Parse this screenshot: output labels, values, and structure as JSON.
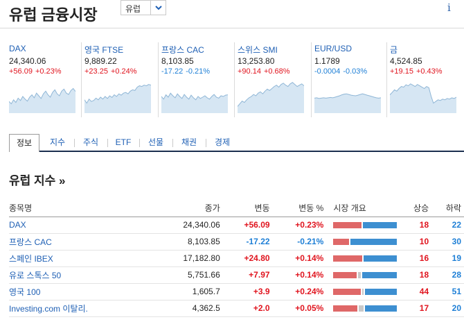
{
  "header": {
    "title": "유럽 금융시장",
    "region_selected": "유럽",
    "info_icon": "info-icon"
  },
  "cards": [
    {
      "name": "DAX",
      "price": "24,340.06",
      "change": "+56.09",
      "pct": "+0.23%",
      "dir": "pos",
      "spark": [
        0.35,
        0.28,
        0.4,
        0.32,
        0.45,
        0.38,
        0.5,
        0.42,
        0.36,
        0.48,
        0.55,
        0.46,
        0.6,
        0.52,
        0.44,
        0.58,
        0.66,
        0.55,
        0.48,
        0.62,
        0.7,
        0.58,
        0.52,
        0.66,
        0.72,
        0.6,
        0.56,
        0.68,
        0.74,
        0.65
      ]
    },
    {
      "name": "영국 FTSE",
      "price": "9,889.22",
      "change": "+23.25",
      "pct": "+0.24%",
      "dir": "pos",
      "spark": [
        0.4,
        0.3,
        0.42,
        0.35,
        0.38,
        0.45,
        0.4,
        0.48,
        0.42,
        0.5,
        0.44,
        0.52,
        0.47,
        0.55,
        0.5,
        0.58,
        0.54,
        0.6,
        0.62,
        0.58,
        0.66,
        0.7,
        0.68,
        0.78,
        0.82,
        0.8,
        0.84,
        0.82,
        0.86,
        0.84
      ]
    },
    {
      "name": "프랑스 CAC",
      "price": "8,103.85",
      "change": "-17.22",
      "pct": "-0.21%",
      "dir": "neg",
      "spark": [
        0.5,
        0.42,
        0.55,
        0.48,
        0.6,
        0.52,
        0.46,
        0.58,
        0.5,
        0.44,
        0.56,
        0.48,
        0.42,
        0.54,
        0.46,
        0.4,
        0.5,
        0.44,
        0.48,
        0.52,
        0.46,
        0.42,
        0.5,
        0.56,
        0.48,
        0.45,
        0.52,
        0.5,
        0.54,
        0.55
      ]
    },
    {
      "name": "스위스 SMI",
      "price": "13,253.80",
      "change": "+90.14",
      "pct": "+0.68%",
      "dir": "pos",
      "spark": [
        0.2,
        0.28,
        0.36,
        0.32,
        0.4,
        0.46,
        0.5,
        0.56,
        0.52,
        0.6,
        0.64,
        0.58,
        0.66,
        0.72,
        0.68,
        0.74,
        0.8,
        0.84,
        0.78,
        0.86,
        0.9,
        0.84,
        0.8,
        0.88,
        0.92,
        0.86,
        0.8,
        0.84,
        0.88,
        0.82
      ]
    },
    {
      "name": "EUR/USD",
      "price": "1.1789",
      "change": "-0.0004",
      "pct": "-0.03%",
      "dir": "neg",
      "spark": [
        0.45,
        0.46,
        0.44,
        0.45,
        0.46,
        0.45,
        0.46,
        0.47,
        0.46,
        0.48,
        0.5,
        0.52,
        0.55,
        0.57,
        0.58,
        0.56,
        0.54,
        0.53,
        0.52,
        0.54,
        0.56,
        0.58,
        0.56,
        0.54,
        0.52,
        0.5,
        0.48,
        0.46,
        0.45,
        0.46
      ]
    },
    {
      "name": "금",
      "price": "4,524.85",
      "change": "+19.15",
      "pct": "+0.43%",
      "dir": "pos",
      "spark": [
        0.55,
        0.62,
        0.7,
        0.66,
        0.74,
        0.8,
        0.78,
        0.85,
        0.82,
        0.88,
        0.84,
        0.8,
        0.86,
        0.82,
        0.78,
        0.74,
        0.8,
        0.76,
        0.5,
        0.3,
        0.35,
        0.4,
        0.38,
        0.42,
        0.4,
        0.44,
        0.42,
        0.46,
        0.44,
        0.48
      ]
    }
  ],
  "tabs": [
    "정보",
    "지수",
    "주식",
    "ETF",
    "선물",
    "채권",
    "경제"
  ],
  "section": {
    "title": "유럽 지수 »"
  },
  "table": {
    "headers": [
      "종목명",
      "종가",
      "변동",
      "변동 %",
      "시장 개요",
      "상승",
      "하락"
    ],
    "rows": [
      {
        "name": "DAX",
        "close": "24,340.06",
        "change": "+56.09",
        "pct": "+0.23%",
        "dir": "pos",
        "up": "18",
        "down": "22",
        "up_ratio": 0.45,
        "flat_ratio": 0.0
      },
      {
        "name": "프랑스 CAC",
        "close": "8,103.85",
        "change": "-17.22",
        "pct": "-0.21%",
        "dir": "neg",
        "up": "10",
        "down": "30",
        "up_ratio": 0.25,
        "flat_ratio": 0.0
      },
      {
        "name": "스페인 IBEX",
        "close": "17,182.80",
        "change": "+24.80",
        "pct": "+0.14%",
        "dir": "pos",
        "up": "16",
        "down": "19",
        "up_ratio": 0.46,
        "flat_ratio": 0.0
      },
      {
        "name": "유로 스톡스 50",
        "close": "5,751.66",
        "change": "+7.97",
        "pct": "+0.14%",
        "dir": "pos",
        "up": "18",
        "down": "28",
        "up_ratio": 0.37,
        "flat_ratio": 0.06
      },
      {
        "name": "영국 100",
        "close": "1,605.7",
        "change": "+3.9",
        "pct": "+0.24%",
        "dir": "pos",
        "up": "44",
        "down": "51",
        "up_ratio": 0.44,
        "flat_ratio": 0.04
      },
      {
        "name": "Investing.com 이탈리.",
        "close": "4,362.5",
        "change": "+2.0",
        "pct": "+0.05%",
        "dir": "pos",
        "up": "17",
        "down": "20",
        "up_ratio": 0.38,
        "flat_ratio": 0.1
      }
    ]
  },
  "colors": {
    "pos": "#e0141e",
    "neg": "#1e7fd6",
    "link": "#1e5fb4",
    "spark_fill": "#d6e6f3",
    "spark_line": "#8fb6d6"
  }
}
